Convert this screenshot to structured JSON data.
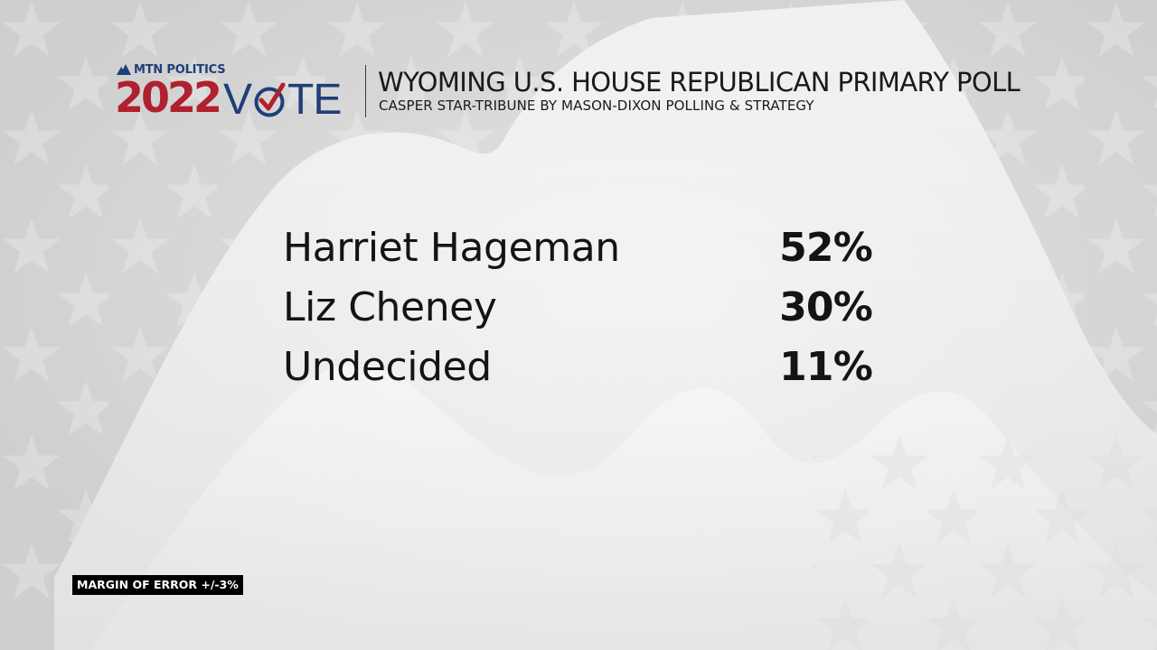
{
  "logo": {
    "top_label": "MTN POLITICS",
    "year": "2022",
    "word_start": "V",
    "word_end": "TE",
    "colors": {
      "red": "#b0202e",
      "blue": "#1e3f78"
    },
    "icons": [
      "mountain-icon",
      "checkmark-icon"
    ]
  },
  "header": {
    "title": "WYOMING U.S. HOUSE REPUBLICAN PRIMARY POLL",
    "subtitle": "CASPER STAR-TRIBUNE BY MASON-DIXON POLLING & STRATEGY"
  },
  "results": [
    {
      "name": "Harriet Hageman",
      "percent": "52%",
      "value": 52
    },
    {
      "name": "Liz Cheney",
      "percent": "30%",
      "value": 30
    },
    {
      "name": "Undecided",
      "percent": "11%",
      "value": 11
    }
  ],
  "footer": {
    "margin_of_error": "MARGIN OF ERROR +/-3%"
  }
}
